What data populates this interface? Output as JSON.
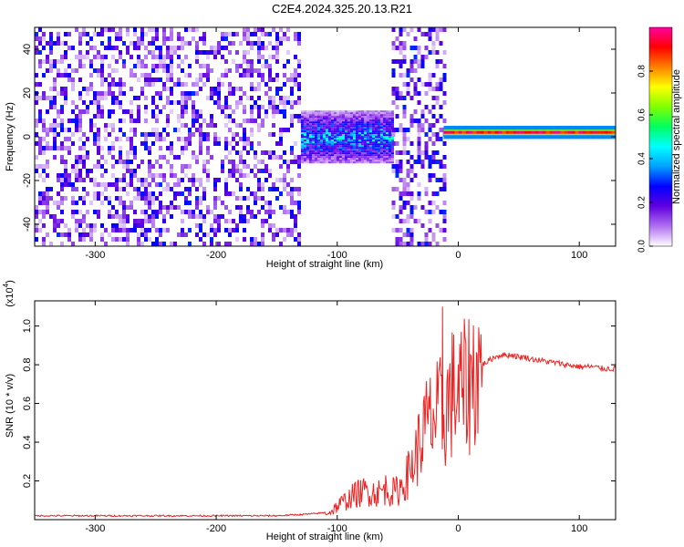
{
  "title": "C2E4.2024.325.20.13.R21",
  "chart_data": [
    {
      "type": "heatmap",
      "xlabel": "Height of straight line (km)",
      "ylabel": "Frequency (Hz)",
      "xlim": [
        -350,
        130
      ],
      "ylim": [
        -50,
        50
      ],
      "xticks": [
        -300,
        -200,
        -100,
        0,
        100
      ],
      "yticks": [
        -40,
        -20,
        0,
        20,
        40
      ],
      "colorbar": {
        "label": "Normalized spectral amplitude",
        "range": [
          0,
          1
        ],
        "ticks": [
          "0.0",
          "0.2",
          "0.4",
          "0.6",
          "0.8"
        ],
        "colors": [
          "#ffffff",
          "#b070f0",
          "#6000e0",
          "#0000ff",
          "#00a0ff",
          "#00ffff",
          "#00ff60",
          "#80ff00",
          "#ffff00",
          "#ff8000",
          "#ff0000",
          "#ff00a0"
        ]
      },
      "regions": [
        {
          "x": [
            -350,
            -130
          ],
          "freq_range": [
            -50,
            50
          ],
          "amplitude": [
            0.0,
            0.3
          ],
          "pattern": "broadband speckle"
        },
        {
          "x": [
            -130,
            -55
          ],
          "freq_range": [
            -12,
            12
          ],
          "amplitude": [
            0.2,
            0.55
          ],
          "pattern": "band near 0 Hz"
        },
        {
          "x": [
            -55,
            -12
          ],
          "freq_range": [
            -50,
            50
          ],
          "amplitude": [
            0.0,
            0.3
          ],
          "pattern": "broadband speckle"
        },
        {
          "x": [
            -12,
            130
          ],
          "freq_range": [
            -1,
            5
          ],
          "amplitude": [
            0.85,
            1.0
          ],
          "pattern": "narrow line near 2 Hz"
        }
      ]
    },
    {
      "type": "line",
      "xlabel": "Height of straight line (km)",
      "ylabel": "SNR (10 * v/v)",
      "y_multiplier": "(x10",
      "y_multiplier_exp": "4",
      "xlim": [
        -350,
        130
      ],
      "ylim": [
        0,
        1.13
      ],
      "xticks": [
        -300,
        -200,
        -100,
        0,
        100
      ],
      "yticks": [
        "0.2",
        "0.4",
        "0.6",
        "0.8",
        "1.0"
      ],
      "series": [
        {
          "color": "#ee2222",
          "x": [
            -350,
            -300,
            -250,
            -200,
            -150,
            -120,
            -105,
            -100,
            -95,
            -90,
            -85,
            -80,
            -75,
            -70,
            -65,
            -60,
            -55,
            -50,
            -45,
            -40,
            -35,
            -30,
            -25,
            -20,
            -15,
            -12,
            -10,
            -5,
            0,
            5,
            10,
            15,
            20,
            25,
            30,
            35,
            40,
            45,
            50,
            55,
            60,
            70,
            80,
            90,
            100,
            110,
            120,
            130
          ],
          "y": [
            0.02,
            0.02,
            0.02,
            0.02,
            0.02,
            0.03,
            0.04,
            0.07,
            0.09,
            0.11,
            0.13,
            0.14,
            0.15,
            0.14,
            0.14,
            0.16,
            0.14,
            0.15,
            0.19,
            0.25,
            0.33,
            0.43,
            0.5,
            0.52,
            0.55,
            0.5,
            0.58,
            0.65,
            0.65,
            0.67,
            0.72,
            0.76,
            0.8,
            0.82,
            0.84,
            0.85,
            0.85,
            0.85,
            0.84,
            0.84,
            0.83,
            0.82,
            0.81,
            0.8,
            0.79,
            0.79,
            0.78,
            0.78
          ]
        }
      ]
    }
  ]
}
